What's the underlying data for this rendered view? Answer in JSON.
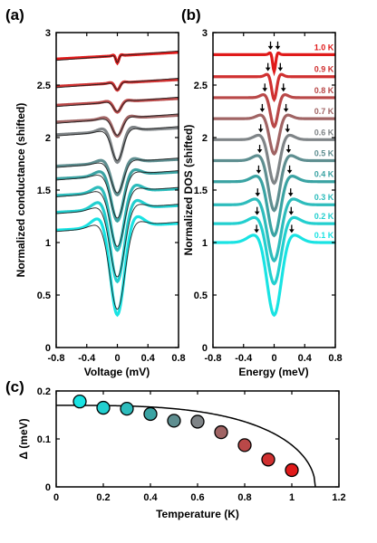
{
  "panels": {
    "a": {
      "letter": "(a)",
      "xlabel": "Voltage (mV)",
      "ylabel": "Normalized conductance (shifted)"
    },
    "b": {
      "letter": "(b)",
      "xlabel": "Energy (meV)",
      "ylabel": "Normalized DOS (shifted)"
    },
    "c": {
      "letter": "(c)",
      "xlabel": "Temperature (K)",
      "ylabel": "Δ (meV)"
    }
  },
  "chart_data": [
    {
      "panel": "a",
      "type": "line",
      "xlabel": "Voltage (mV)",
      "ylabel": "Normalized conductance (shifted)",
      "xlim": [
        -0.8,
        0.8
      ],
      "ylim": [
        0,
        3
      ],
      "xticks": [
        "-0.8",
        "-0.4",
        "0",
        "0.4",
        "0.8"
      ],
      "yticks": [
        "0",
        "0.5",
        "1",
        "1.5",
        "2",
        "2.5",
        "3"
      ],
      "series": [
        {
          "T": 0.1,
          "color": "#19e3e3",
          "baseline": 1.15,
          "dip_min": 0.3,
          "gap": 0.17
        },
        {
          "T": 0.2,
          "color": "#22cfcf",
          "baseline": 1.32,
          "dip_min": 0.62,
          "gap": 0.165
        },
        {
          "T": 0.3,
          "color": "#2dbcbc",
          "baseline": 1.48,
          "dip_min": 0.92,
          "gap": 0.16
        },
        {
          "T": 0.4,
          "color": "#3aa3a3",
          "baseline": 1.64,
          "dip_min": 1.2,
          "gap": 0.15
        },
        {
          "T": 0.5,
          "color": "#5e8e90",
          "baseline": 1.76,
          "dip_min": 1.45,
          "gap": 0.14
        },
        {
          "T": 0.6,
          "color": "#7f8487",
          "baseline": 2.06,
          "dip_min": 1.76,
          "gap": 0.13
        },
        {
          "T": 0.7,
          "color": "#a06464",
          "baseline": 2.18,
          "dip_min": 2.01,
          "gap": 0.115
        },
        {
          "T": 0.8,
          "color": "#b94848",
          "baseline": 2.34,
          "dip_min": 2.24,
          "gap": 0.09
        },
        {
          "T": 0.9,
          "color": "#d03030",
          "baseline": 2.52,
          "dip_min": 2.45,
          "gap": 0.06
        },
        {
          "T": 1.0,
          "color": "#e01a1a",
          "baseline": 2.78,
          "dip_min": 2.71,
          "gap": 0.035
        }
      ]
    },
    {
      "panel": "b",
      "type": "line",
      "xlabel": "Energy (meV)",
      "ylabel": "Normalized DOS (shifted)",
      "xlim": [
        -0.8,
        0.8
      ],
      "ylim": [
        0,
        3
      ],
      "xticks": [
        "-0.8",
        "-0.4",
        "0",
        "0.4",
        "0.8"
      ],
      "yticks": [
        "0",
        "0.5",
        "1",
        "1.5",
        "2",
        "2.5",
        "3"
      ],
      "labels": [
        "0.1 K",
        "0.2 K",
        "0.3 K",
        "0.4 K",
        "0.5 K",
        "0.6 K",
        "0.7 K",
        "0.8 K",
        "0.9 K",
        "1.0 K"
      ],
      "series": [
        {
          "T": 0.1,
          "color": "#19e3e3",
          "baseline": 1.0,
          "dip_min": 0.3,
          "gap": 0.17
        },
        {
          "T": 0.2,
          "color": "#22cfcf",
          "baseline": 1.18,
          "dip_min": 0.6,
          "gap": 0.165
        },
        {
          "T": 0.3,
          "color": "#2dbcbc",
          "baseline": 1.36,
          "dip_min": 0.82,
          "gap": 0.16
        },
        {
          "T": 0.4,
          "color": "#3aa3a3",
          "baseline": 1.58,
          "dip_min": 1.06,
          "gap": 0.15
        },
        {
          "T": 0.5,
          "color": "#5e8e90",
          "baseline": 1.78,
          "dip_min": 1.3,
          "gap": 0.14
        },
        {
          "T": 0.6,
          "color": "#7f8487",
          "baseline": 1.98,
          "dip_min": 1.56,
          "gap": 0.13
        },
        {
          "T": 0.7,
          "color": "#a06464",
          "baseline": 2.18,
          "dip_min": 1.84,
          "gap": 0.115
        },
        {
          "T": 0.8,
          "color": "#b94848",
          "baseline": 2.38,
          "dip_min": 2.1,
          "gap": 0.09
        },
        {
          "T": 0.9,
          "color": "#d03030",
          "baseline": 2.58,
          "dip_min": 2.36,
          "gap": 0.06
        },
        {
          "T": 1.0,
          "color": "#e01a1a",
          "baseline": 2.79,
          "dip_min": 2.63,
          "gap": 0.035
        }
      ]
    },
    {
      "panel": "c",
      "type": "scatter",
      "xlabel": "Temperature (K)",
      "ylabel": "Δ (meV)",
      "xlim": [
        0,
        1.2
      ],
      "ylim": [
        0,
        0.2
      ],
      "xticks": [
        "0",
        "0.2",
        "0.4",
        "0.6",
        "0.8",
        "1",
        "1.2"
      ],
      "yticks": [
        "0",
        "0.1",
        "0.2"
      ],
      "points": [
        {
          "x": 0.1,
          "y": 0.178,
          "color": "#19e3e3"
        },
        {
          "x": 0.2,
          "y": 0.165,
          "color": "#22cfcf"
        },
        {
          "x": 0.3,
          "y": 0.163,
          "color": "#2dbcbc"
        },
        {
          "x": 0.4,
          "y": 0.152,
          "color": "#3aa3a3"
        },
        {
          "x": 0.5,
          "y": 0.138,
          "color": "#5e8e90"
        },
        {
          "x": 0.6,
          "y": 0.136,
          "color": "#7f8487"
        },
        {
          "x": 0.7,
          "y": 0.114,
          "color": "#a06464"
        },
        {
          "x": 0.8,
          "y": 0.087,
          "color": "#b94848"
        },
        {
          "x": 0.9,
          "y": 0.057,
          "color": "#d03030"
        },
        {
          "x": 1.0,
          "y": 0.035,
          "color": "#e01a1a"
        }
      ],
      "fit": {
        "type": "bcs",
        "delta0": 0.17,
        "Tc": 1.1
      }
    }
  ]
}
